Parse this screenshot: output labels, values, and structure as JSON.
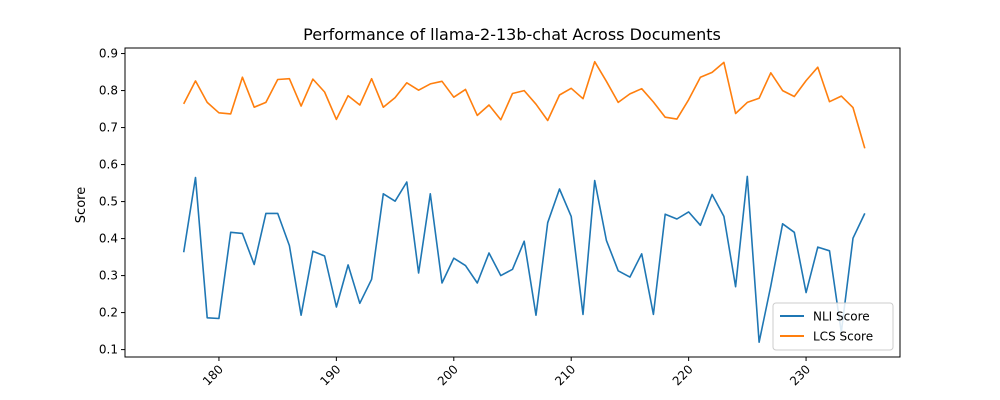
{
  "chart_data": {
    "type": "line",
    "title": "Performance of llama-2-13b-chat Across Documents",
    "xlabel": "",
    "ylabel": "Score",
    "xlim": [
      172,
      238
    ],
    "ylim": [
      0.08,
      0.915
    ],
    "x_ticks": [
      180,
      190,
      200,
      210,
      220,
      230
    ],
    "y_ticks": [
      0.1,
      0.2,
      0.3,
      0.4,
      0.5,
      0.6,
      0.7,
      0.8,
      0.9
    ],
    "grid": false,
    "legend_position": "lower-right",
    "x": [
      177,
      178,
      179,
      180,
      181,
      182,
      183,
      184,
      185,
      186,
      187,
      188,
      189,
      190,
      191,
      192,
      193,
      194,
      195,
      196,
      197,
      198,
      199,
      200,
      201,
      202,
      203,
      204,
      205,
      206,
      207,
      208,
      209,
      210,
      211,
      212,
      213,
      214,
      215,
      216,
      217,
      218,
      219,
      220,
      221,
      222,
      223,
      224,
      225,
      226,
      227,
      228,
      229,
      230,
      231,
      232,
      233,
      234,
      235
    ],
    "series": [
      {
        "name": "NLI Score",
        "color": "#1f77b4",
        "values": [
          0.363,
          0.565,
          0.186,
          0.184,
          0.417,
          0.414,
          0.33,
          0.468,
          0.468,
          0.381,
          0.193,
          0.366,
          0.353,
          0.215,
          0.329,
          0.225,
          0.29,
          0.521,
          0.501,
          0.553,
          0.307,
          0.521,
          0.28,
          0.347,
          0.327,
          0.28,
          0.361,
          0.3,
          0.317,
          0.393,
          0.193,
          0.443,
          0.534,
          0.46,
          0.195,
          0.557,
          0.395,
          0.313,
          0.296,
          0.359,
          0.195,
          0.466,
          0.453,
          0.472,
          0.436,
          0.519,
          0.46,
          0.27,
          0.568,
          0.12,
          0.272,
          0.44,
          0.417,
          0.254,
          0.377,
          0.367,
          0.147,
          0.401,
          0.468
        ]
      },
      {
        "name": "LCS Score",
        "color": "#ff7f0e",
        "values": [
          0.764,
          0.826,
          0.768,
          0.74,
          0.737,
          0.836,
          0.755,
          0.768,
          0.83,
          0.832,
          0.758,
          0.831,
          0.796,
          0.722,
          0.786,
          0.761,
          0.832,
          0.755,
          0.781,
          0.821,
          0.801,
          0.818,
          0.825,
          0.782,
          0.803,
          0.733,
          0.761,
          0.721,
          0.792,
          0.8,
          0.763,
          0.719,
          0.788,
          0.806,
          0.778,
          0.878,
          0.825,
          0.768,
          0.791,
          0.805,
          0.769,
          0.728,
          0.723,
          0.775,
          0.836,
          0.849,
          0.876,
          0.738,
          0.768,
          0.779,
          0.848,
          0.8,
          0.784,
          0.827,
          0.863,
          0.77,
          0.785,
          0.754,
          0.644
        ]
      }
    ]
  }
}
